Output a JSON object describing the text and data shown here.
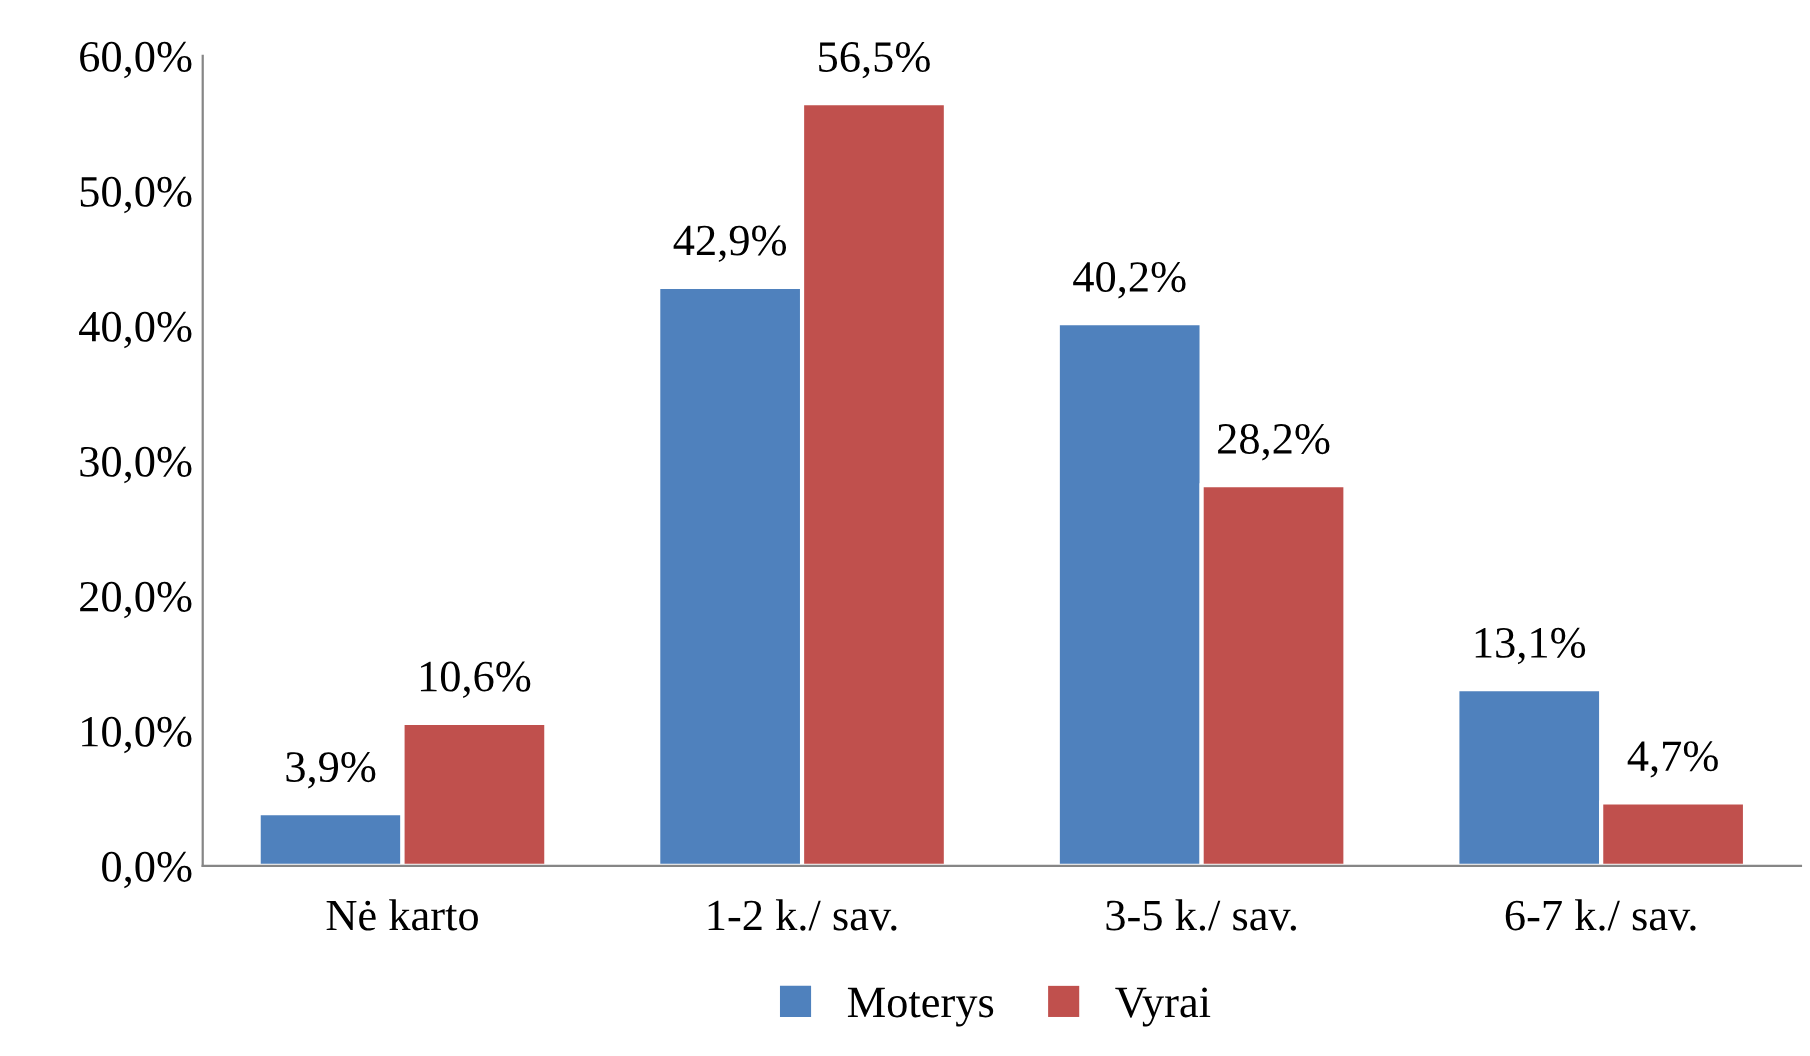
{
  "chart_data": {
    "type": "bar",
    "categories": [
      "Nė karto",
      "1-2 k./ sav.",
      "3-5 k./ sav.",
      "6-7 k./ sav."
    ],
    "series": [
      {
        "name": "Moterys",
        "color": "#4f81bd",
        "values": [
          3.9,
          42.9,
          40.2,
          13.1
        ],
        "value_labels": [
          "3,9%",
          "42,9%",
          "40,2%",
          "13,1%"
        ]
      },
      {
        "name": "Vyrai",
        "color": "#c0504d",
        "values": [
          10.6,
          56.5,
          28.2,
          4.7
        ],
        "value_labels": [
          "10,6%",
          "56,5%",
          "28,2%",
          "4,7%"
        ]
      }
    ],
    "ylim": [
      0,
      60
    ],
    "yticks": [
      {
        "value": 0,
        "label": "0,0%"
      },
      {
        "value": 10,
        "label": "10,0%"
      },
      {
        "value": 20,
        "label": "20,0%"
      },
      {
        "value": 30,
        "label": "30,0%"
      },
      {
        "value": 40,
        "label": "40,0%"
      },
      {
        "value": 50,
        "label": "50,0%"
      },
      {
        "value": 60,
        "label": "60,0%"
      }
    ],
    "grid": false,
    "legend": "bottom"
  }
}
